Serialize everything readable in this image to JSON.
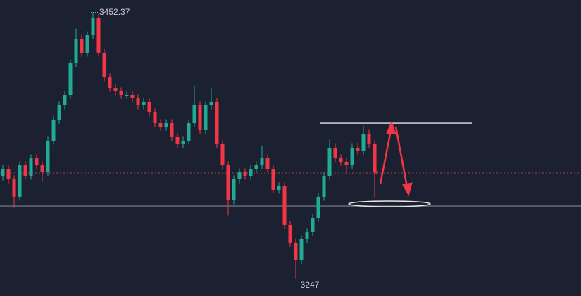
{
  "chart_data": {
    "type": "candlestick",
    "ylim": [
      3234,
      3462
    ],
    "up_color": "#22ab94",
    "down_color": "#f23645",
    "high_label": 3452.37,
    "low_label": 3247,
    "levels": [
      {
        "value": 3328.8,
        "color": "#a8394a",
        "dashed": true
      },
      {
        "value": 3303.3,
        "color": "#6b717e",
        "dashed": false
      },
      {
        "value": 3367.2,
        "color": "#e6e6e6",
        "dashed": false
      }
    ],
    "open": [
      3326.0,
      3332.0,
      3323.9,
      3310.4,
      3334.7,
      3326.6,
      3340.1,
      3334.7,
      3329.3,
      3353.7,
      3369.9,
      3380.8,
      3388.9,
      3413.3,
      3432.2,
      3421.4,
      3434.9,
      3448.5,
      3421.4,
      3402.4,
      3394.3,
      3391.6,
      3388.9,
      3388.9,
      3386.2,
      3380.8,
      3383.5,
      3375.3,
      3367.2,
      3364.5,
      3367.2,
      3356.4,
      3351.0,
      3353.7,
      3367.2,
      3380.8,
      3361.8,
      3380.8,
      3383.5,
      3351.0,
      3334.7,
      3307.7,
      3323.9,
      3329.3,
      3326.6,
      3332.0,
      3334.7,
      3340.1,
      3332.0,
      3315.8,
      3318.5,
      3288.7,
      3275.2,
      3261.6,
      3277.9,
      3283.3,
      3294.1,
      3310.4,
      3326.6,
      3348.3,
      3340.1,
      3337.4,
      3334.7,
      3348.3,
      3345.6,
      3359.1,
      3351.0
    ],
    "high": [
      3335.0,
      3335.0,
      3326.9,
      3337.7,
      3337.7,
      3343.1,
      3343.1,
      3337.7,
      3356.7,
      3372.9,
      3383.8,
      3391.9,
      3416.3,
      3440.0,
      3435.2,
      3437.9,
      3452.37,
      3451.5,
      3424.4,
      3405.4,
      3397.3,
      3394.6,
      3391.9,
      3391.9,
      3389.2,
      3386.5,
      3386.5,
      3378.3,
      3370.2,
      3370.2,
      3370.2,
      3359.4,
      3356.7,
      3370.2,
      3396.0,
      3383.8,
      3383.8,
      3394.0,
      3386.5,
      3354.0,
      3337.7,
      3326.9,
      3332.3,
      3332.3,
      3335.0,
      3337.7,
      3350.0,
      3343.1,
      3335.0,
      3321.5,
      3321.5,
      3291.7,
      3278.2,
      3280.9,
      3286.3,
      3297.1,
      3313.4,
      3329.6,
      3355.0,
      3351.3,
      3343.1,
      3340.4,
      3351.3,
      3351.3,
      3365.0,
      3362.1,
      3354.0
    ],
    "low": [
      3323.0,
      3320.9,
      3302.0,
      3307.4,
      3323.6,
      3323.6,
      3331.7,
      3322.0,
      3326.3,
      3350.7,
      3366.9,
      3377.8,
      3385.9,
      3410.3,
      3418.4,
      3418.4,
      3431.9,
      3418.4,
      3399.4,
      3391.3,
      3388.6,
      3385.9,
      3385.9,
      3383.2,
      3377.8,
      3377.8,
      3372.3,
      3364.2,
      3361.5,
      3361.5,
      3353.4,
      3348.0,
      3348.0,
      3350.7,
      3364.2,
      3358.8,
      3358.8,
      3377.8,
      3348.0,
      3331.7,
      3296.0,
      3304.7,
      3320.9,
      3323.6,
      3323.6,
      3329.0,
      3331.7,
      3329.0,
      3312.8,
      3312.8,
      3285.7,
      3272.2,
      3247,
      3258.6,
      3274.9,
      3280.3,
      3291.1,
      3307.4,
      3323.6,
      3337.1,
      3334.4,
      3328.0,
      3331.7,
      3342.6,
      3342.6,
      3348.0,
      3310.0
    ],
    "close": [
      3332.0,
      3323.9,
      3310.4,
      3334.7,
      3326.6,
      3340.1,
      3334.7,
      3329.3,
      3353.7,
      3369.9,
      3380.8,
      3388.9,
      3413.3,
      3432.2,
      3421.4,
      3434.9,
      3448.5,
      3421.4,
      3402.4,
      3394.3,
      3391.6,
      3388.9,
      3388.9,
      3386.2,
      3380.8,
      3383.5,
      3375.3,
      3367.2,
      3364.5,
      3367.2,
      3356.4,
      3351.0,
      3353.7,
      3367.2,
      3380.8,
      3361.8,
      3380.8,
      3383.5,
      3351.0,
      3334.7,
      3307.7,
      3323.9,
      3329.3,
      3326.6,
      3332.0,
      3334.7,
      3340.1,
      3332.0,
      3315.8,
      3318.5,
      3288.7,
      3275.2,
      3261.6,
      3277.9,
      3283.3,
      3294.1,
      3310.4,
      3326.6,
      3348.3,
      3340.1,
      3337.4,
      3334.7,
      3348.3,
      3345.6,
      3359.1,
      3351.0,
      3329.3
    ]
  }
}
